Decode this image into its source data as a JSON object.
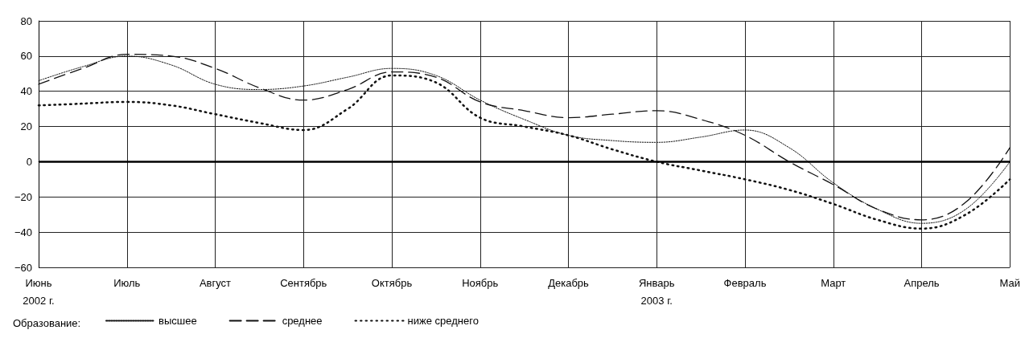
{
  "chart_data": {
    "type": "line",
    "legend_title": "Образование:",
    "legend": "bottom left",
    "grid": true,
    "marker": "none",
    "categories": [
      "Июнь\n2002 г.",
      null,
      "Июль",
      null,
      "Август",
      null,
      "Сентябрь",
      null,
      "Октябрь",
      null,
      "Ноябрь",
      null,
      "Декабрь",
      null,
      "Январь\n2003 г.",
      null,
      "Февраль",
      null,
      "Март",
      null,
      "Апрель",
      null,
      "Май"
    ],
    "ylim": [
      -60,
      80
    ],
    "yticks": [
      -60,
      -40,
      -20,
      0,
      20,
      40,
      60,
      80
    ],
    "ref_lines": [
      {
        "axis": "y",
        "value": 0,
        "label": null,
        "color": "#000000"
      }
    ],
    "series": [
      {
        "name": "высшее",
        "color": "#111111",
        "line_style": "dotted",
        "values": [
          46,
          54,
          60,
          55,
          44,
          41,
          43,
          48,
          53,
          49,
          35,
          24,
          15,
          12,
          11,
          14,
          18,
          8,
          -12,
          -27,
          -35,
          -27,
          0
        ]
      },
      {
        "name": "среднее",
        "color": "#111111",
        "line_style": "dashed",
        "values": [
          44,
          53,
          61,
          60,
          53,
          42,
          35,
          41,
          51,
          48,
          34,
          29,
          25,
          27,
          29,
          24,
          15,
          0,
          -13,
          -27,
          -33,
          -23,
          8
        ]
      },
      {
        "name": "ниже среднего",
        "color": "#111111",
        "line_style": "dotted",
        "values": [
          32,
          33,
          34,
          32,
          27,
          22,
          18,
          30,
          49,
          45,
          25,
          20,
          15,
          7,
          0,
          -5,
          -10,
          -16,
          -24,
          -33,
          -38,
          -30,
          -10
        ]
      }
    ]
  }
}
